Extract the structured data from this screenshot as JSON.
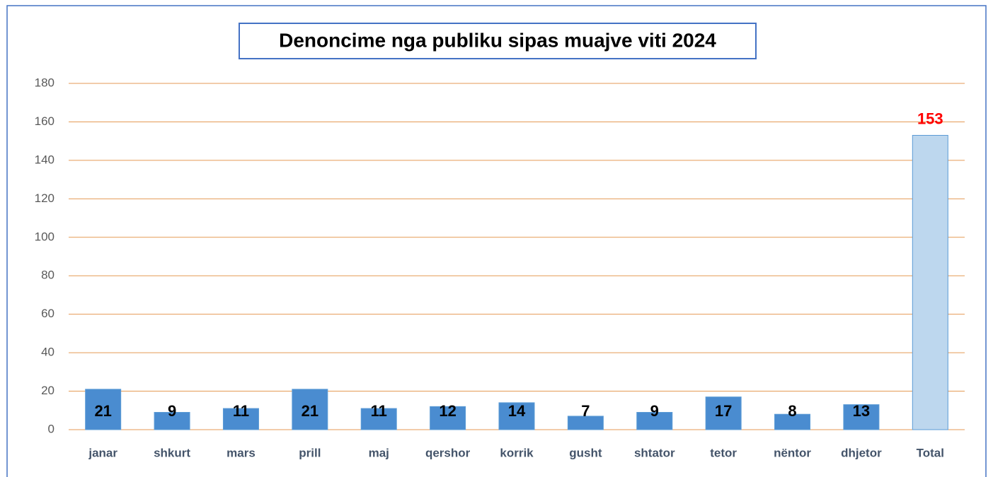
{
  "chart_data": {
    "type": "bar",
    "title": "Denoncime nga publiku sipas muajve viti 2024",
    "categories": [
      "janar",
      "shkurt",
      "mars",
      "prill",
      "maj",
      "qershor",
      "korrik",
      "gusht",
      "shtator",
      "tetor",
      "nëntor",
      "dhjetor",
      "Total"
    ],
    "values": [
      21,
      9,
      11,
      21,
      11,
      12,
      14,
      7,
      9,
      17,
      8,
      13,
      153
    ],
    "colors": [
      "#4a8cd0",
      "#4a8cd0",
      "#4a8cd0",
      "#4a8cd0",
      "#4a8cd0",
      "#4a8cd0",
      "#4a8cd0",
      "#4a8cd0",
      "#4a8cd0",
      "#4a8cd0",
      "#4a8cd0",
      "#4a8cd0",
      "#bdd7ee"
    ],
    "bar_border_color": "#5b9bd5",
    "label_colors": [
      "#000000",
      "#000000",
      "#000000",
      "#000000",
      "#000000",
      "#000000",
      "#000000",
      "#000000",
      "#000000",
      "#000000",
      "#000000",
      "#000000",
      "#ff0000"
    ],
    "label_positions": [
      "inside",
      "inside",
      "inside",
      "inside",
      "inside",
      "inside",
      "inside",
      "inside",
      "inside",
      "inside",
      "inside",
      "inside",
      "above"
    ],
    "ylim": [
      0,
      180
    ],
    "yticks": [
      0,
      20,
      40,
      60,
      80,
      100,
      120,
      140,
      160,
      180
    ],
    "grid": true,
    "grid_color": "#e59a54"
  }
}
